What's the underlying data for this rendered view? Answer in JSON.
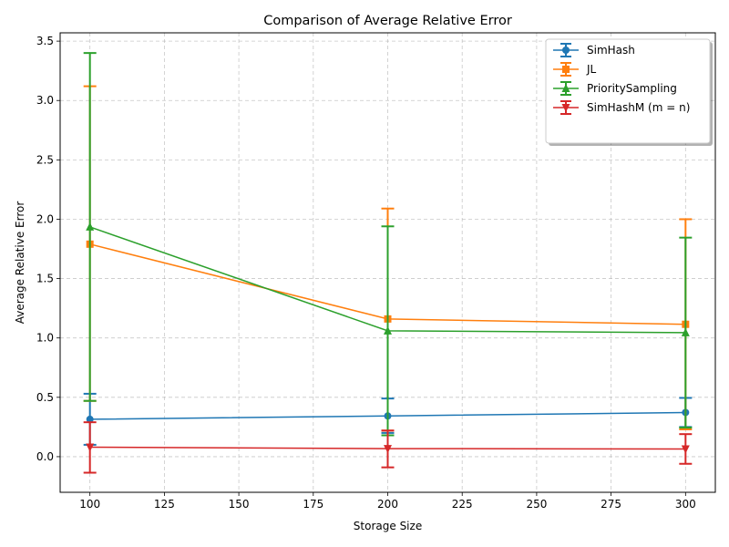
{
  "chart_data": {
    "type": "line",
    "title": "Comparison of Average Relative Error",
    "xlabel": "Storage Size",
    "ylabel": "Average Relative Error",
    "xlim": [
      90,
      310
    ],
    "ylim": [
      -0.3,
      3.57
    ],
    "x_ticks": [
      100,
      125,
      150,
      175,
      200,
      225,
      250,
      275,
      300
    ],
    "y_ticks": [
      0.0,
      0.5,
      1.0,
      1.5,
      2.0,
      2.5,
      3.0,
      3.5
    ],
    "grid": true,
    "legend_position": "top-right",
    "x": [
      100,
      200,
      300
    ],
    "series": [
      {
        "name": "SimHash",
        "color": "#1f77b4",
        "marker": "circle",
        "values": [
          0.315,
          0.343,
          0.372
        ],
        "err_low": [
          0.1,
          0.2,
          0.25
        ],
        "err_high": [
          0.53,
          0.49,
          0.495
        ]
      },
      {
        "name": "JL",
        "color": "#ff7f0e",
        "marker": "square",
        "values": [
          1.79,
          1.16,
          1.115
        ],
        "err_low": [
          0.47,
          0.22,
          0.23
        ],
        "err_high": [
          3.12,
          2.09,
          2.0
        ]
      },
      {
        "name": "PrioritySampling",
        "color": "#2ca02c",
        "marker": "triangle",
        "values": [
          1.935,
          1.06,
          1.045
        ],
        "err_low": [
          0.47,
          0.18,
          0.245
        ],
        "err_high": [
          3.4,
          1.94,
          1.845
        ]
      },
      {
        "name": "SimHashM (m = n)",
        "color": "#d62728",
        "marker": "triangle-down",
        "values": [
          0.08,
          0.068,
          0.065
        ],
        "err_low": [
          -0.135,
          -0.09,
          -0.06
        ],
        "err_high": [
          0.29,
          0.22,
          0.19
        ]
      }
    ]
  }
}
